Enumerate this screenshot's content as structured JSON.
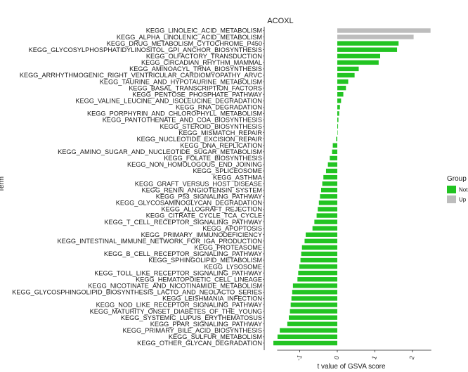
{
  "chart_data": {
    "type": "bar",
    "orientation": "horizontal",
    "title": "ACOXL",
    "xlabel": "t value of GSVA score",
    "ylabel": "Term",
    "xlim": [
      -1.75,
      2.6
    ],
    "xticks": [
      -1,
      0,
      1,
      2
    ],
    "grid": false,
    "legend": {
      "title": "Group",
      "position": "right",
      "entries": [
        {
          "name": "Not",
          "color": "#22c422"
        },
        {
          "name": "Up",
          "color": "#bdbdbd"
        }
      ]
    },
    "colors": {
      "Not": "#22c422",
      "Up": "#bdbdbd"
    },
    "categories": [
      "KEGG_LINOLEIC_ACID_METABOLISM",
      "KEGG_ALPHA_LINOLENIC_ACID_METABOLISM",
      "KEGG_DRUG_METABOLISM_CYTOCHROME_P450",
      "KEGG_GLYCOSYLPHOSPHATIDYLINOSITOL_GPI_ANCHOR_BIOSYNTHESIS",
      "KEGG_OLFACTORY_TRANSDUCTION",
      "KEGG_CIRCADIAN_RHYTHM_MAMMAL",
      "KEGG_AMINOACYL_TRNA_BIOSYNTHESIS",
      "KEGG_ARRHYTHMOGENIC_RIGHT_VENTRICULAR_CARDIOMYOPATHY_ARVC",
      "KEGG_TAURINE_AND_HYPOTAURINE_METABOLISM",
      "KEGG_BASAL_TRANSCRIPTION_FACTORS",
      "KEGG_PENTOSE_PHOSPHATE_PATHWAY",
      "KEGG_VALINE_LEUCINE_AND_ISOLEUCINE_DEGRADATION",
      "KEGG_RNA_DEGRADATION",
      "KEGG_PORPHYRIN_AND_CHLOROPHYLL_METABOLISM",
      "KEGG_PANTOTHENATE_AND_COA_BIOSYNTHESIS",
      "KEGG_STEROID_BIOSYNTHESIS",
      "KEGG_MISMATCH_REPAIR",
      "KEGG_NUCLEOTIDE_EXCISION_REPAIR",
      "KEGG_DNA_REPLICATION",
      "KEGG_AMINO_SUGAR_AND_NUCLEOTIDE_SUGAR_METABOLISM",
      "KEGG_FOLATE_BIOSYNTHESIS",
      "KEGG_NON_HOMOLOGOUS_END_JOINING",
      "KEGG_SPLICEOSOME",
      "KEGG_ASTHMA",
      "KEGG_GRAFT_VERSUS_HOST_DISEASE",
      "KEGG_RENIN_ANGIOTENSIN_SYSTEM",
      "KEGG_P53_SIGNALING_PATHWAY",
      "KEGG_GLYCOSAMINOGLYCAN_DEGRADATION",
      "KEGG_ALLOGRAFT_REJECTION",
      "KEGG_CITRATE_CYCLE_TCA_CYCLE",
      "KEGG_T_CELL_RECEPTOR_SIGNALING_PATHWAY",
      "KEGG_APOPTOSIS",
      "KEGG_PRIMARY_IMMUNODEFICIENCY",
      "KEGG_INTESTINAL_IMMUNE_NETWORK_FOR_IGA_PRODUCTION",
      "KEGG_PROTEASOME",
      "KEGG_B_CELL_RECEPTOR_SIGNALING_PATHWAY",
      "KEGG_SPHINGOLIPID_METABOLISM",
      "KEGG_LYSOSOME",
      "KEGG_TOLL_LIKE_RECEPTOR_SIGNALING_PATHWAY",
      "KEGG_HEMATOPOIETIC_CELL_LINEAGE",
      "KEGG_NICOTINATE_AND_NICOTINAMIDE_METABOLISM",
      "KEGG_GLYCOSPHINGOLIPID_BIOSYNTHESIS_LACTO_AND_NEOLACTO_SERIES",
      "KEGG_LEISHMANIA_INFECTION",
      "KEGG_NOD_LIKE_RECEPTOR_SIGNALING_PATHWAY",
      "KEGG_MATURITY_ONSET_DIABETES_OF_THE_YOUNG",
      "KEGG_SYSTEMIC_LUPUS_ERYTHEMATOSUS",
      "KEGG_PPAR_SIGNALING_PATHWAY",
      "KEGG_PRIMARY_BILE_ACID_BIOSYNTHESIS",
      "KEGG_SULFUR_METABOLISM",
      "KEGG_OTHER_GLYCAN_DEGRADATION"
    ],
    "values": [
      2.48,
      2.03,
      1.63,
      1.59,
      1.14,
      1.1,
      0.57,
      0.46,
      0.29,
      0.23,
      0.16,
      0.1,
      0.07,
      0.05,
      0.03,
      0.02,
      0.01,
      -0.03,
      -0.12,
      -0.14,
      -0.2,
      -0.25,
      -0.3,
      -0.37,
      -0.4,
      -0.43,
      -0.46,
      -0.49,
      -0.52,
      -0.55,
      -0.61,
      -0.66,
      -0.84,
      -0.87,
      -0.94,
      -0.96,
      -0.98,
      -1.01,
      -1.04,
      -1.06,
      -1.18,
      -1.2,
      -1.22,
      -1.24,
      -1.26,
      -1.29,
      -1.33,
      -1.53,
      -1.59,
      -1.7
    ],
    "groups": [
      "Up",
      "Up",
      "Not",
      "Not",
      "Not",
      "Not",
      "Not",
      "Not",
      "Not",
      "Not",
      "Not",
      "Not",
      "Not",
      "Not",
      "Not",
      "Not",
      "Not",
      "Not",
      "Not",
      "Not",
      "Not",
      "Not",
      "Not",
      "Not",
      "Not",
      "Not",
      "Not",
      "Not",
      "Not",
      "Not",
      "Not",
      "Not",
      "Not",
      "Not",
      "Not",
      "Not",
      "Not",
      "Not",
      "Not",
      "Not",
      "Not",
      "Not",
      "Not",
      "Not",
      "Not",
      "Not",
      "Not",
      "Not",
      "Not",
      "Not"
    ]
  }
}
